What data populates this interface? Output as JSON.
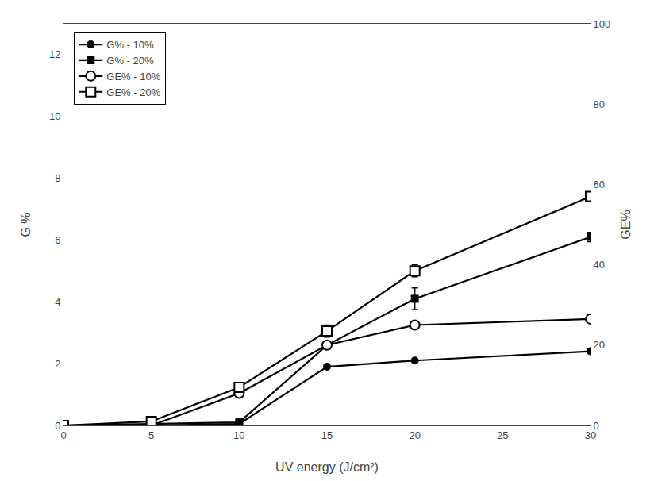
{
  "chart_data": {
    "type": "line",
    "x": [
      0,
      5,
      10,
      15,
      20,
      30
    ],
    "xlabel": "UV energy (J/cm²)",
    "ylabel": "G %",
    "y2label": "GE%",
    "xlim": [
      0,
      30
    ],
    "ylim": [
      0,
      13
    ],
    "y2lim": [
      0,
      100
    ],
    "xticks": [
      0,
      5,
      10,
      15,
      20,
      25,
      30
    ],
    "yticks": [
      0,
      2,
      4,
      6,
      8,
      10,
      12
    ],
    "y2ticks": [
      0,
      20,
      40,
      60,
      80,
      100
    ],
    "grid": false,
    "legend": "upper left",
    "color": "#000000",
    "series": [
      {
        "name": "G% - 10%",
        "axis": "y",
        "marker": "circle",
        "values": [
          0.0,
          0.0,
          0.05,
          1.9,
          2.1,
          2.4
        ],
        "error": [
          0.0,
          0.0,
          0.0,
          0.0,
          0.0,
          0.0
        ]
      },
      {
        "name": "G% - 20%",
        "axis": "y",
        "marker": "square",
        "values": [
          0.0,
          0.05,
          0.1,
          2.6,
          4.1,
          6.1
        ],
        "error": [
          0.0,
          0.0,
          0.0,
          0.1,
          0.35,
          0.15
        ]
      },
      {
        "name": "GE% - 10%",
        "axis": "y2",
        "marker": "circle-open",
        "values": [
          0.0,
          0.0,
          8.0,
          20.0,
          25.0,
          26.5
        ],
        "error": [
          0.0,
          0.0,
          0.5,
          0.8,
          0.8,
          0.5
        ]
      },
      {
        "name": "GE% - 20%",
        "axis": "y2",
        "marker": "square-open",
        "values": [
          0.0,
          1.0,
          9.5,
          23.5,
          38.5,
          57.0
        ],
        "error": [
          0.0,
          0.3,
          0.5,
          1.5,
          1.5,
          1.0
        ]
      }
    ]
  }
}
